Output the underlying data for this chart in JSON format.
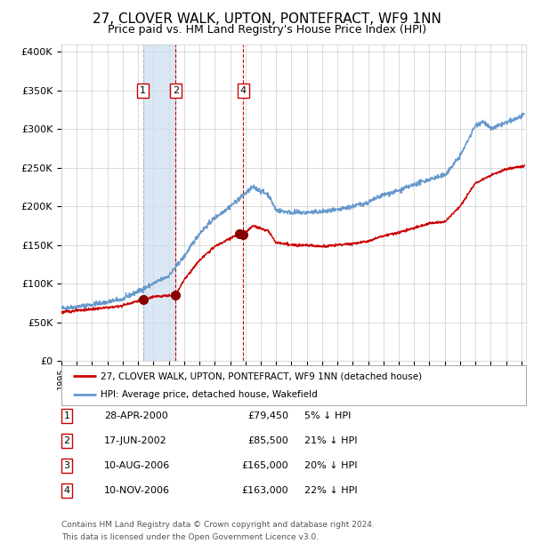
{
  "title": "27, CLOVER WALK, UPTON, PONTEFRACT, WF9 1NN",
  "subtitle": "Price paid vs. HM Land Registry's House Price Index (HPI)",
  "legend_label_red": "27, CLOVER WALK, UPTON, PONTEFRACT, WF9 1NN (detached house)",
  "legend_label_blue": "HPI: Average price, detached house, Wakefield",
  "footer1": "Contains HM Land Registry data © Crown copyright and database right 2024.",
  "footer2": "This data is licensed under the Open Government Licence v3.0.",
  "transactions": [
    {
      "num": 1,
      "date": "28-APR-2000",
      "price": 79450,
      "pct": "5% ↓ HPI"
    },
    {
      "num": 2,
      "date": "17-JUN-2002",
      "price": 85500,
      "pct": "21% ↓ HPI"
    },
    {
      "num": 3,
      "date": "10-AUG-2006",
      "price": 165000,
      "pct": "20% ↓ HPI"
    },
    {
      "num": 4,
      "date": "10-NOV-2006",
      "price": 163000,
      "pct": "22% ↓ HPI"
    }
  ],
  "transaction_dates_decimal": [
    2000.32,
    2002.45,
    2006.61,
    2006.86
  ],
  "transaction_prices": [
    79450,
    85500,
    165000,
    163000
  ],
  "ylim": [
    0,
    410000
  ],
  "xlim_start": 1995.0,
  "xlim_end": 2025.3,
  "color_red": "#cc0000",
  "color_blue": "#6699cc",
  "color_blue_fill": "#ccddf0",
  "color_grid": "#cccccc",
  "background_color": "#ffffff"
}
